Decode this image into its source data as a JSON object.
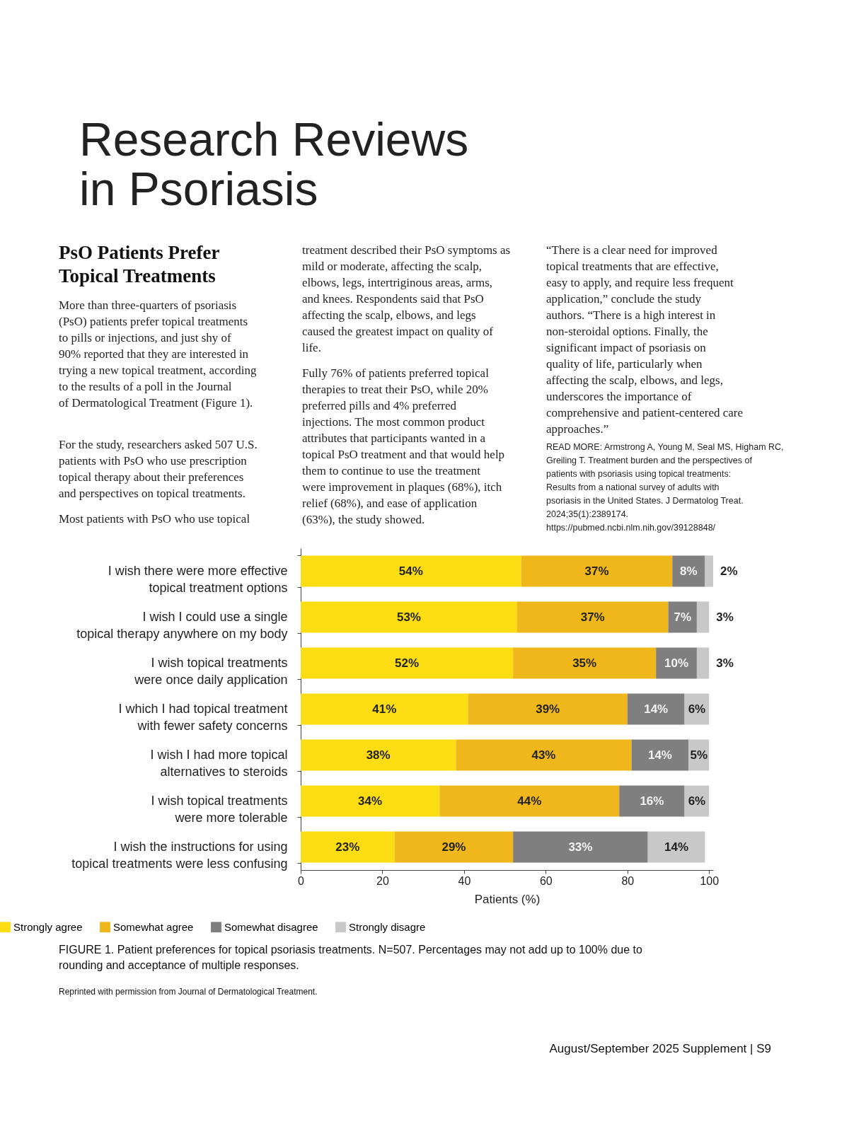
{
  "chart_data": {
    "type": "bar",
    "orientation": "horizontal",
    "stacked": true,
    "title": "Research Reviews in Psoriasis",
    "subtitle": "PsO Patients Prefer Topical Treatments",
    "categories": [
      "I wish there were more effective topical treatment options",
      "I wish I could use a single topical therapy anywhere on my body",
      "I wish topical treatments were once daily application",
      "I which I had topical treatment with fewer safety concerns",
      "I wish I had more topical alternatives to steroids",
      "I wish topical treatments were more tolerable",
      "I wish the instructions for using topical treatments were less confusing"
    ],
    "series": [
      {
        "name": "Strongly agree",
        "color": "#fcdc12",
        "values": [
          54,
          53,
          52,
          41,
          38,
          34,
          23
        ],
        "value_labels": [
          "54%",
          "53%",
          "52%",
          "41%",
          "38%",
          "34%",
          "23%"
        ]
      },
      {
        "name": "Somewhat agree",
        "color": "#efb71b",
        "values": [
          37,
          37,
          35,
          39,
          43,
          44,
          29
        ],
        "value_labels": [
          "37%",
          "37%",
          "35%",
          "39%",
          "43%",
          "44%",
          "29%"
        ]
      },
      {
        "name": "Somewhat disagree",
        "color": "#7f7f7f",
        "values": [
          8,
          7,
          10,
          14,
          14,
          16,
          33
        ],
        "value_labels": [
          "8%",
          "7%",
          "10%",
          "14%",
          "14%",
          "16%",
          "33%"
        ]
      },
      {
        "name": "Strongly disagre",
        "color": "#c8c8c8",
        "values": [
          2,
          3,
          3,
          6,
          5,
          6,
          14
        ],
        "value_labels": [
          "2%",
          "3%",
          "3%",
          "6%",
          "5%",
          "6%",
          "14%"
        ]
      }
    ],
    "xlabel": "Patients (%)",
    "xlim": [
      0,
      101
    ],
    "xticks": [
      0,
      20,
      40,
      60,
      80,
      100
    ],
    "grid": false,
    "legend": "bottom",
    "annotations": [
      "More than three-quarters of psoriasis (PsO) patients prefer topical treatments to pills or injections, and just shy of 90% reported that they are interested in trying a new topical treatment, according to the results of a poll in the Journal of Dermatological Treatment (Figure 1).",
      "For the study, researchers asked 507 U.S. patients with PsO who use prescription topical therapy about their preferences and perspectives on topical treatments.",
      "Most patients with PsO who use topical",
      "treatment described their PsO symptoms as mild or moderate, affecting the scalp, elbows, legs, intertriginous areas, arms, and knees. Respondents said that PsO affecting the scalp, elbows, and legs caused the greatest impact on quality of life.",
      "Fully 76% of patients preferred topical therapies to treat their PsO, while 20% preferred pills and 4% preferred injections. The most common product attributes that participants wanted in a topical PsO treatment and that would help them to continue to use the treatment were improvement in plaques (68%), itch relief (68%), and ease of application (63%), the study showed.",
      "“There is a clear need for improved topical treatments that are effective, easy to apply, and require less frequent application,” conclude the study authors. “There is a high interest in non-steroidal options. Finally, the significant impact of psoriasis on quality of life, particularly when affecting the scalp, elbows, and legs, underscores the importance of comprehensive and patient-centered care approaches.”",
      "READ MORE: Armstrong A, Young M, Seal MS, Higham RC, Greiling T. Treatment burden and the perspectives of patients with psoriasis using topical treatments: Results from a national survey of adults with psoriasis in the United States. J Dermatolog Treat. 2024;35(1):2389174. https://pubmed.ncbi.nlm.nih.gov/39128848/",
      "FIGURE 1. Patient preferences for topical psoriasis treatments. N=507. Percentages may not add up to 100% due to rounding and acceptance of multiple responses.",
      "Reprinted with permission from Journal of Dermatological Treatment.",
      "August/September 2025 Supplement | S9"
    ]
  }
}
